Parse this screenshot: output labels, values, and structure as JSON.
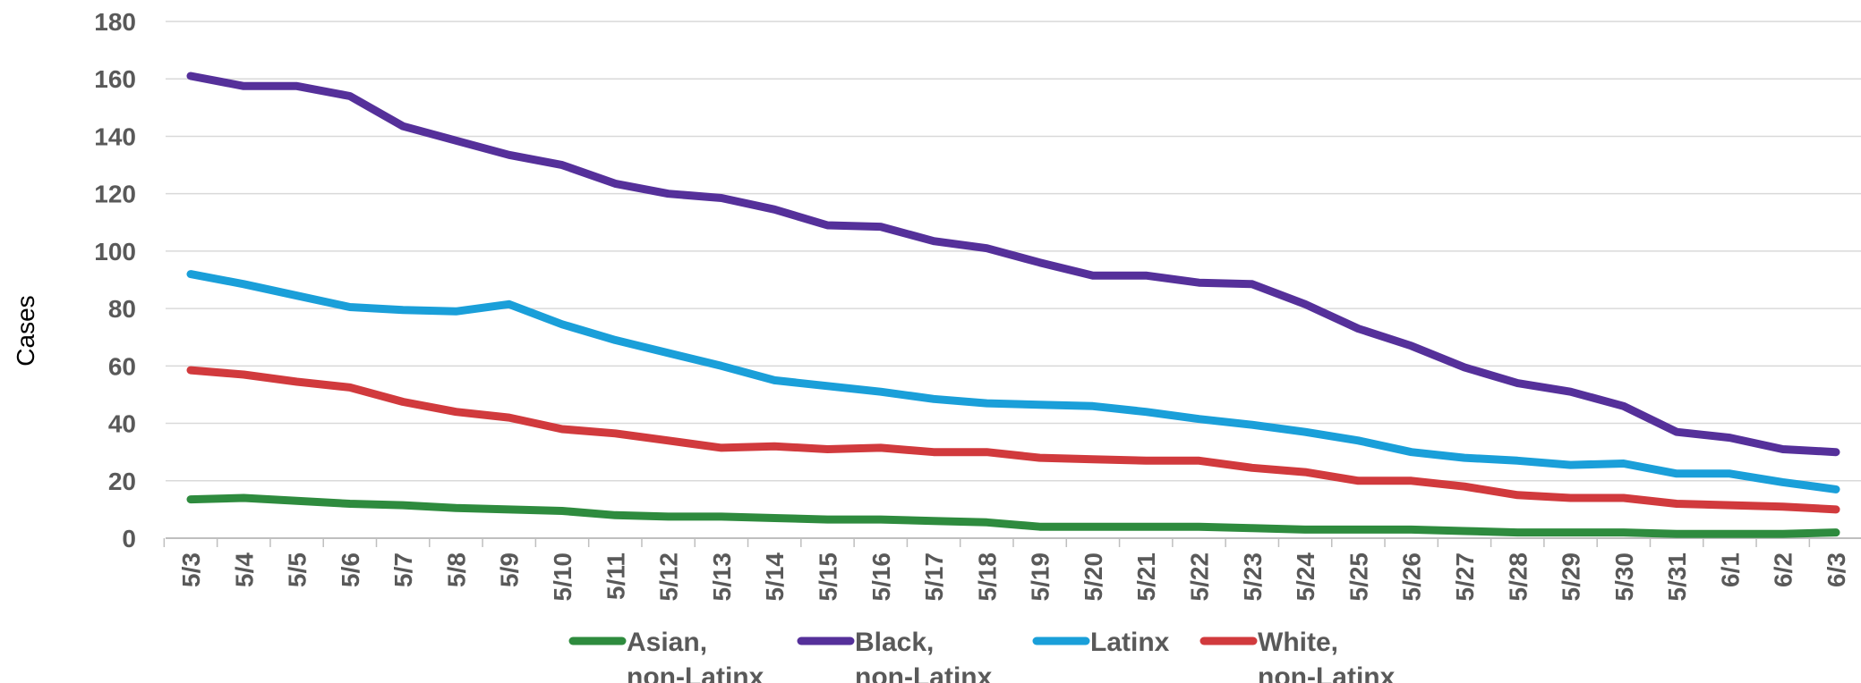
{
  "chart_data": {
    "type": "line",
    "ylabel": "Cases",
    "xlabel": "",
    "ylim": [
      0,
      180
    ],
    "yticks": [
      0,
      20,
      40,
      60,
      80,
      100,
      120,
      140,
      160,
      180
    ],
    "grid": true,
    "legend_position": "bottom",
    "categories": [
      "5/3",
      "5/4",
      "5/5",
      "5/6",
      "5/7",
      "5/8",
      "5/9",
      "5/10",
      "5/11",
      "5/12",
      "5/13",
      "5/14",
      "5/15",
      "5/16",
      "5/17",
      "5/18",
      "5/19",
      "5/20",
      "5/21",
      "5/22",
      "5/23",
      "5/24",
      "5/25",
      "5/26",
      "5/27",
      "5/28",
      "5/29",
      "5/30",
      "5/31",
      "6/1",
      "6/2",
      "6/3"
    ],
    "series": [
      {
        "name": "Asian, non-Latinx",
        "legend_lines": [
          "Asian,",
          "non-Latinx"
        ],
        "color": "#2e8b3e",
        "values": [
          13.5,
          14,
          13,
          12,
          11.5,
          10.5,
          10,
          9.5,
          8,
          7.5,
          7.5,
          7,
          6.5,
          6.5,
          6,
          5.5,
          4,
          4,
          4,
          4,
          3.5,
          3,
          3,
          3,
          2.5,
          2,
          2,
          2,
          1.5,
          1.5,
          1.5,
          2
        ]
      },
      {
        "name": "Black, non-Latinx",
        "legend_lines": [
          "Black,",
          "non-Latinx"
        ],
        "color": "#55309a",
        "values": [
          161,
          157.5,
          157.5,
          154,
          143.5,
          138.5,
          133.5,
          130,
          123.5,
          120,
          118.5,
          114.5,
          109,
          108.5,
          103.5,
          101,
          96,
          91.5,
          91.5,
          89,
          88.5,
          81.5,
          73,
          67,
          59.5,
          54,
          51,
          46,
          37,
          35,
          31,
          30
        ]
      },
      {
        "name": "Latinx",
        "legend_lines": [
          "Latinx"
        ],
        "color": "#1a9fd9",
        "values": [
          92,
          88.5,
          84.5,
          80.5,
          79.5,
          79,
          81.5,
          74.5,
          69,
          64.5,
          60,
          55,
          53,
          51,
          48.5,
          47,
          46.5,
          46,
          44,
          41.5,
          39.5,
          37,
          34,
          30,
          28,
          27,
          25.5,
          26,
          22.5,
          22.5,
          19.5,
          17
        ]
      },
      {
        "name": "White, non-Latinx",
        "legend_lines": [
          "White,",
          "non-Latinx"
        ],
        "color": "#d13a3d",
        "values": [
          58.5,
          57,
          54.5,
          52.5,
          47.5,
          44,
          42,
          38,
          36.5,
          34,
          31.5,
          32,
          31,
          31.5,
          30,
          30,
          28,
          27.5,
          27,
          27,
          24.5,
          23,
          20,
          20,
          18,
          15,
          14,
          14,
          12,
          11.5,
          11,
          10
        ]
      }
    ]
  }
}
